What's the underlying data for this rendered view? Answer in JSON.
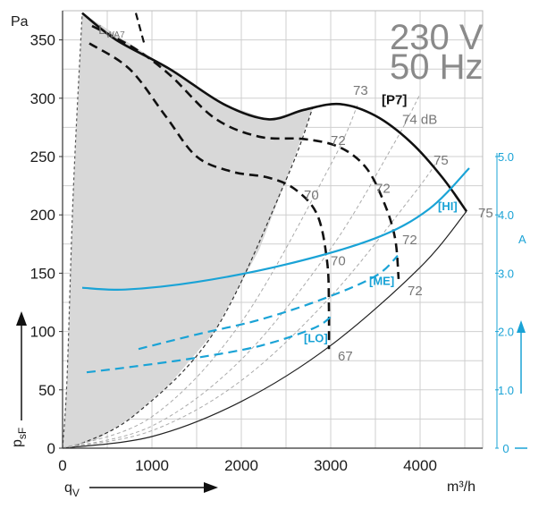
{
  "chart_data": {
    "type": "line",
    "title": "",
    "supply": {
      "voltage": "230 V",
      "frequency": "50 Hz"
    },
    "x_axis": {
      "label_main": "q",
      "label_sub": "V",
      "unit": "m³/h",
      "range": [
        0,
        4700
      ],
      "ticks": [
        0,
        1000,
        2000,
        3000,
        4000
      ],
      "tick_labels": [
        "0",
        "1000",
        "2000",
        "3000",
        "4000"
      ]
    },
    "y_axis_left": {
      "label": "Pa",
      "quantity_main": "p",
      "quantity_sub": "sF",
      "range": [
        0,
        375
      ],
      "ticks": [
        0,
        50,
        100,
        150,
        200,
        250,
        300,
        350
      ],
      "tick_labels": [
        "0",
        "50",
        "100",
        "150",
        "200",
        "250",
        "300",
        "350"
      ]
    },
    "y_axis_right": {
      "label": "A",
      "color": "#1aa3d6",
      "range": [
        0,
        7.5
      ],
      "ticks": [
        0,
        1,
        2,
        3,
        4,
        5
      ],
      "tick_labels": [
        "0",
        "1.0",
        "2.0",
        "3.0",
        "4.0",
        "5.0"
      ]
    },
    "grid": true,
    "colors": {
      "pressure": "#111111",
      "current": "#1aa3d6",
      "iso": "#aaaaaa",
      "shade": "#d8d8d8",
      "annotation": "#777777"
    },
    "pressure_curves": [
      {
        "name": "P7",
        "style": "solid",
        "points": [
          [
            220,
            373
          ],
          [
            600,
            350
          ],
          [
            1200,
            325
          ],
          [
            1800,
            295
          ],
          [
            2300,
            282
          ],
          [
            2700,
            290
          ],
          [
            3100,
            295
          ],
          [
            3500,
            285
          ],
          [
            3900,
            262
          ],
          [
            4250,
            232
          ],
          [
            4520,
            203
          ]
        ]
      },
      {
        "name": "",
        "style": "dash",
        "points": [
          [
            330,
            362
          ],
          [
            800,
            343
          ],
          [
            1200,
            320
          ],
          [
            1700,
            283
          ],
          [
            2200,
            267
          ],
          [
            2700,
            265
          ],
          [
            3100,
            258
          ],
          [
            3400,
            240
          ],
          [
            3600,
            210
          ],
          [
            3720,
            180
          ],
          [
            3760,
            145
          ]
        ]
      },
      {
        "name": "",
        "style": "dash",
        "points": [
          [
            300,
            347
          ],
          [
            750,
            325
          ],
          [
            1150,
            285
          ],
          [
            1500,
            250
          ],
          [
            1900,
            237
          ],
          [
            2300,
            232
          ],
          [
            2600,
            222
          ],
          [
            2850,
            200
          ],
          [
            2960,
            160
          ],
          [
            2980,
            120
          ],
          [
            2980,
            85
          ]
        ]
      }
    ],
    "current_curves": [
      {
        "name": "HI",
        "style": "solid",
        "points": [
          [
            220,
            2.75
          ],
          [
            700,
            2.72
          ],
          [
            1500,
            2.85
          ],
          [
            2500,
            3.15
          ],
          [
            3500,
            3.6
          ],
          [
            4100,
            4.1
          ],
          [
            4550,
            4.8
          ]
        ]
      },
      {
        "name": "ME",
        "style": "dash",
        "points": [
          [
            850,
            1.7
          ],
          [
            1500,
            1.95
          ],
          [
            2200,
            2.2
          ],
          [
            2900,
            2.55
          ],
          [
            3500,
            2.95
          ],
          [
            3750,
            3.3
          ]
        ]
      },
      {
        "name": "LO",
        "style": "dash",
        "points": [
          [
            270,
            1.3
          ],
          [
            800,
            1.4
          ],
          [
            1500,
            1.55
          ],
          [
            2200,
            1.75
          ],
          [
            2800,
            2.05
          ],
          [
            3000,
            2.25
          ]
        ]
      }
    ],
    "lwa_boundary": {
      "label": "L",
      "label_sub": "WA7",
      "points": [
        [
          820,
          373
        ],
        [
          920,
          345
        ]
      ]
    },
    "system_curves": [
      {
        "style": "solid",
        "points": [
          [
            0,
            0
          ],
          [
            1000,
            10
          ],
          [
            2000,
            40
          ],
          [
            3000,
            88
          ],
          [
            4000,
            155
          ],
          [
            4520,
            203
          ]
        ]
      },
      {
        "style": "dash-gray",
        "points": [
          [
            0,
            0
          ],
          [
            1000,
            15
          ],
          [
            2000,
            58
          ],
          [
            3000,
            130
          ],
          [
            3900,
            215
          ],
          [
            4230,
            250
          ]
        ]
      },
      {
        "style": "dash-gray",
        "points": [
          [
            0,
            0
          ],
          [
            1000,
            19
          ],
          [
            2000,
            76
          ],
          [
            3000,
            171
          ],
          [
            3700,
            260
          ],
          [
            3990,
            302
          ]
        ]
      },
      {
        "style": "dash-gray",
        "points": [
          [
            0,
            0
          ],
          [
            1000,
            27
          ],
          [
            2000,
            108
          ],
          [
            3000,
            243
          ],
          [
            3300,
            294
          ]
        ]
      }
    ],
    "shaded_region": {
      "boundary_points": [
        [
          0,
          0
        ],
        [
          50,
          60
        ],
        [
          120,
          220
        ],
        [
          220,
          373
        ],
        [
          1200,
          325
        ],
        [
          1800,
          295
        ],
        [
          2300,
          282
        ],
        [
          2800,
          292
        ],
        [
          2500,
          230
        ],
        [
          2200,
          170
        ],
        [
          1700,
          100
        ],
        [
          1200,
          55
        ],
        [
          800,
          28
        ],
        [
          400,
          8
        ],
        [
          150,
          2
        ]
      ]
    },
    "sound_labels": [
      {
        "text": "73",
        "x": 3250,
        "y": 303
      },
      {
        "text": "74 dB",
        "x": 3800,
        "y": 278
      },
      {
        "text": "72",
        "x": 3000,
        "y": 260
      },
      {
        "text": "75",
        "x": 4150,
        "y": 243
      },
      {
        "text": "70",
        "x": 2700,
        "y": 213
      },
      {
        "text": "72",
        "x": 3500,
        "y": 219
      },
      {
        "text": "75",
        "x": 4650,
        "y": 198
      },
      {
        "text": "72",
        "x": 3800,
        "y": 175
      },
      {
        "text": "70",
        "x": 3000,
        "y": 157
      },
      {
        "text": "72",
        "x": 3860,
        "y": 131
      },
      {
        "text": "67",
        "x": 3080,
        "y": 75
      }
    ],
    "speed_labels": [
      {
        "text": "[P7]",
        "x": 3570,
        "y": 295,
        "color": "dark"
      },
      {
        "text": "[HI]",
        "x": 4200,
        "y": 204,
        "color": "blue"
      },
      {
        "text": "[ME]",
        "x": 3430,
        "y": 140,
        "color": "blue"
      },
      {
        "text": "[LO]",
        "x": 2700,
        "y": 91,
        "color": "blue"
      }
    ]
  }
}
